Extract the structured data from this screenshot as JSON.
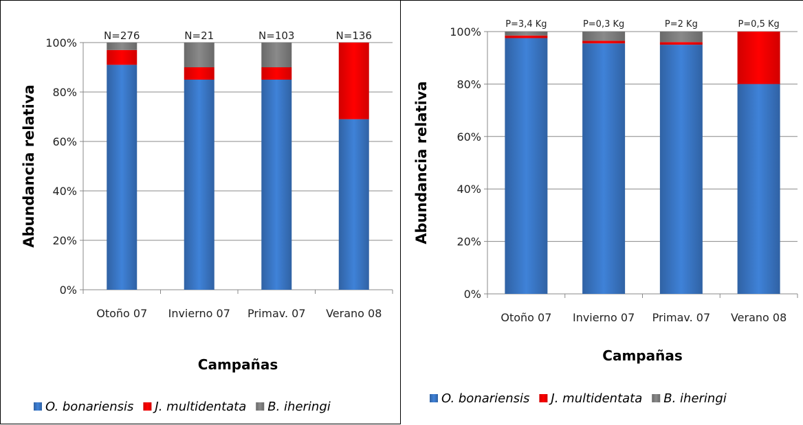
{
  "chart_data": [
    {
      "type": "bar",
      "stacked": true,
      "title": "",
      "xlabel": "Campañas",
      "ylabel": "Abundancia relativa",
      "ylim": [
        0,
        100
      ],
      "yticks": [
        "0%",
        "20%",
        "40%",
        "60%",
        "80%",
        "100%"
      ],
      "grid": true,
      "legend": "bottom",
      "categories": [
        "Otoño 07",
        "Invierno 07",
        "Primav. 07",
        "Verano 08"
      ],
      "bar_labels": [
        "N=276",
        "N=21",
        "N=103",
        "N=136"
      ],
      "series": [
        {
          "name": "O. bonariensis",
          "values": [
            91,
            85,
            85,
            69
          ],
          "color": "#3a78c8"
        },
        {
          "name": "J. multidentata",
          "values": [
            6,
            5,
            5,
            31
          ],
          "color": "#ff0000"
        },
        {
          "name": "B. iheringi",
          "values": [
            3,
            10,
            10,
            0
          ],
          "color": "#808080"
        }
      ]
    },
    {
      "type": "bar",
      "stacked": true,
      "title": "",
      "xlabel": "Campañas",
      "ylabel": "Abundancia relativa",
      "ylim": [
        0,
        100
      ],
      "yticks": [
        "0%",
        "20%",
        "40%",
        "60%",
        "80%",
        "100%"
      ],
      "grid": true,
      "legend": "bottom",
      "categories": [
        "Otoño 07",
        "Invierno 07",
        "Primav. 07",
        "Verano 08"
      ],
      "bar_labels": [
        "P=3,4 Kg",
        "P=0,3 Kg",
        "P=2 Kg",
        "P=0,5 Kg"
      ],
      "series": [
        {
          "name": "O. bonariensis",
          "values": [
            97.5,
            95.5,
            95,
            80
          ],
          "color": "#3a78c8"
        },
        {
          "name": "J. multidentata",
          "values": [
            1,
            1,
            1,
            20
          ],
          "color": "#ff0000"
        },
        {
          "name": "B. iheringi",
          "values": [
            1.5,
            3.5,
            4,
            0
          ],
          "color": "#808080"
        }
      ]
    }
  ]
}
